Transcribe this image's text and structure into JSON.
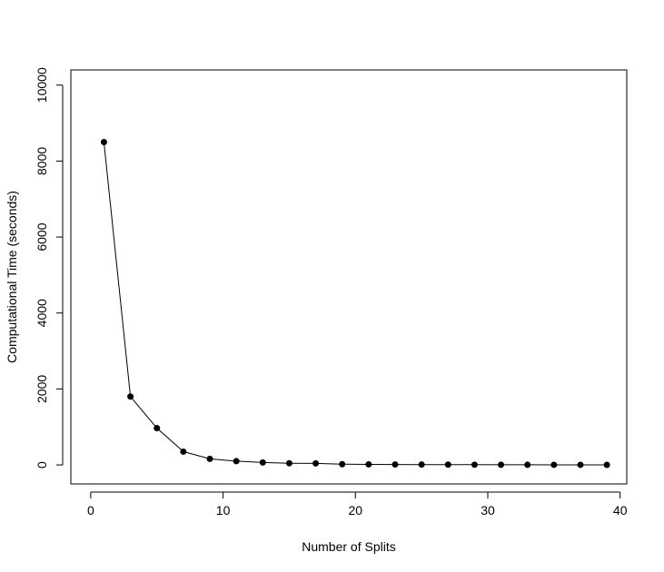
{
  "chart_data": {
    "type": "line",
    "title": "",
    "xlabel": "Number of Splits",
    "ylabel": "Computational Time (seconds)",
    "xlim": [
      -1.5,
      40.5
    ],
    "ylim": [
      -500,
      10400
    ],
    "x_ticks": [
      0,
      10,
      20,
      30,
      40
    ],
    "y_ticks": [
      0,
      2000,
      4000,
      6000,
      8000,
      10000
    ],
    "x_tick_labels": [
      "0",
      "10",
      "20",
      "30",
      "40"
    ],
    "y_tick_labels": [
      "0",
      "2000",
      "4000",
      "6000",
      "8000",
      "10000"
    ],
    "grid": false,
    "legend": "none",
    "series": [
      {
        "x": [
          1,
          3,
          5,
          7,
          9,
          11,
          13,
          15,
          17,
          19,
          21,
          23,
          25,
          27,
          29,
          31,
          33,
          35,
          37,
          39
        ],
        "y": [
          8500,
          1800,
          970,
          350,
          160,
          100,
          65,
          45,
          40,
          20,
          15,
          12,
          10,
          8,
          6,
          5,
          4,
          3,
          3,
          2
        ],
        "color": "#000000",
        "marker": "filled-circle"
      }
    ]
  }
}
